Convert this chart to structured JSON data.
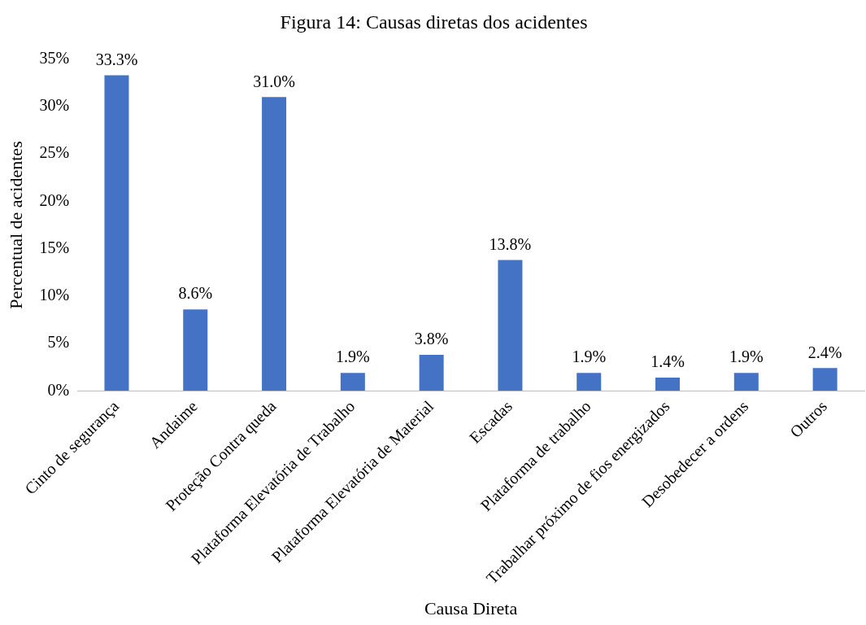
{
  "chart_data": {
    "type": "bar",
    "title": "Figura 14: Causas diretas dos acidentes",
    "xlabel": "Causa Direta",
    "ylabel": "Percentual de acidentes",
    "categories": [
      "Cinto de segurança",
      "Andaime",
      "Proteção Contra queda",
      "Plataforma Elevatória de Trabalho",
      "Plataforma Elevatória de Material",
      "Escadas",
      "Plataforma de trabalho",
      "Trabalhar próximo de fios energizados",
      "Desobedecer a ordens",
      "Outros"
    ],
    "values": [
      33.3,
      8.6,
      31.0,
      1.9,
      3.8,
      13.8,
      1.9,
      1.4,
      1.9,
      2.4
    ],
    "value_labels": [
      "33.3%",
      "8.6%",
      "31.0%",
      "1.9%",
      "3.8%",
      "13.8%",
      "1.9%",
      "1.4%",
      "1.9%",
      "2.4%"
    ],
    "color": "#4472c4",
    "ylim": [
      0,
      35
    ],
    "yticks": [
      {
        "value": 0,
        "label": "0%"
      },
      {
        "value": 5,
        "label": "5%"
      },
      {
        "value": 10,
        "label": "10%"
      },
      {
        "value": 15,
        "label": "15%"
      },
      {
        "value": 20,
        "label": "20%"
      },
      {
        "value": 25,
        "label": "25%"
      },
      {
        "value": 30,
        "label": "30%"
      },
      {
        "value": 35,
        "label": "35%"
      }
    ],
    "grid": false,
    "legend": false
  }
}
